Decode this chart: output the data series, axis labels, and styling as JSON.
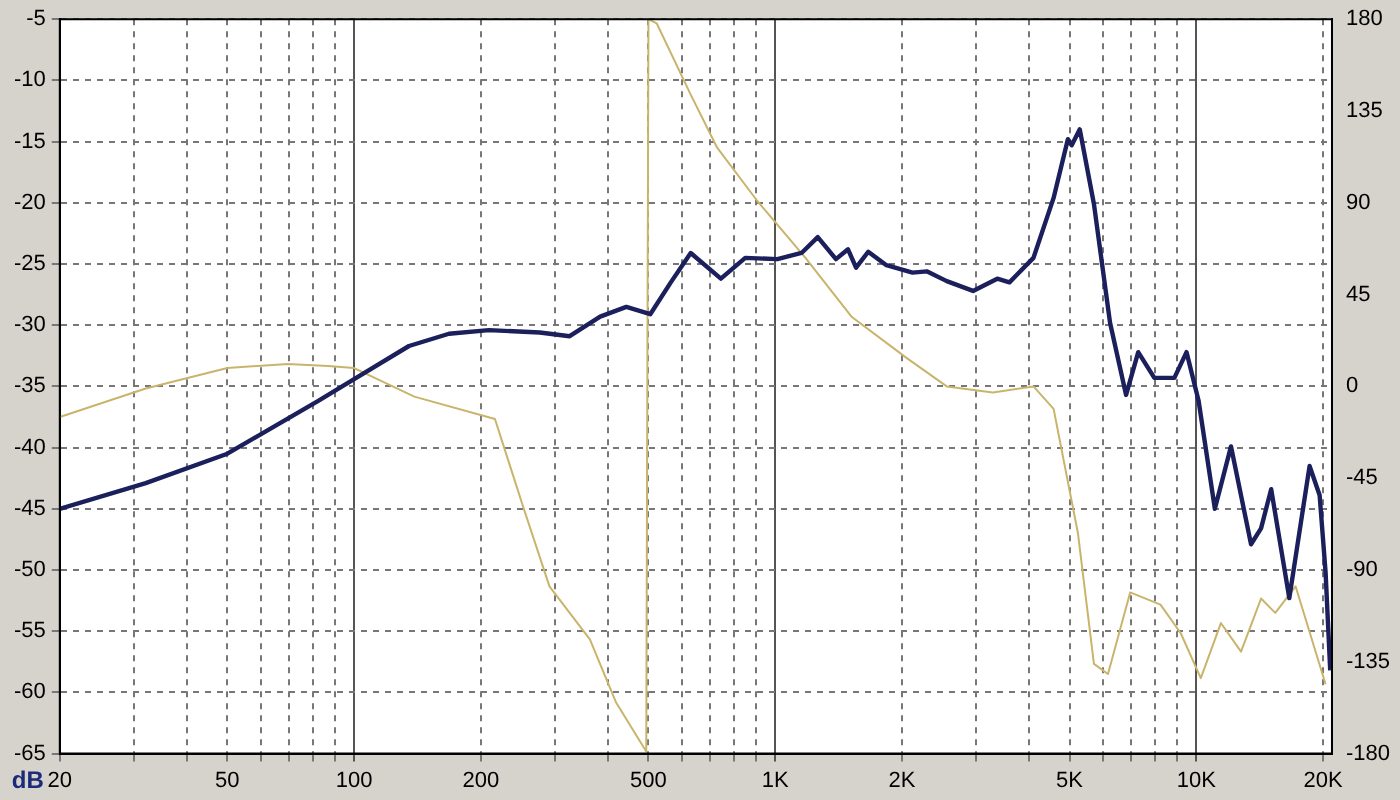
{
  "chart_data": {
    "type": "line",
    "ylabel": "dB",
    "xlim": [
      20,
      21000
    ],
    "ylim": [
      -65,
      -5
    ],
    "y2lim": [
      -180,
      180
    ],
    "log": "x",
    "grid": true,
    "legend": false,
    "marker": "none",
    "line_style": "solid",
    "xticks": [
      {
        "value": 20,
        "label": "20"
      },
      {
        "value": 30,
        "label": null
      },
      {
        "value": 40,
        "label": null
      },
      {
        "value": 50,
        "label": "50"
      },
      {
        "value": 60,
        "label": null
      },
      {
        "value": 70,
        "label": null
      },
      {
        "value": 80,
        "label": null
      },
      {
        "value": 90,
        "label": null
      },
      {
        "value": 100,
        "label": "100"
      },
      {
        "value": 200,
        "label": "200"
      },
      {
        "value": 300,
        "label": null
      },
      {
        "value": 400,
        "label": null
      },
      {
        "value": 500,
        "label": "500"
      },
      {
        "value": 600,
        "label": null
      },
      {
        "value": 700,
        "label": null
      },
      {
        "value": 800,
        "label": null
      },
      {
        "value": 900,
        "label": null
      },
      {
        "value": 1000,
        "label": "1K"
      },
      {
        "value": 2000,
        "label": "2K"
      },
      {
        "value": 3000,
        "label": null
      },
      {
        "value": 4000,
        "label": null
      },
      {
        "value": 5000,
        "label": "5K"
      },
      {
        "value": 6000,
        "label": null
      },
      {
        "value": 7000,
        "label": null
      },
      {
        "value": 8000,
        "label": null
      },
      {
        "value": 9000,
        "label": null
      },
      {
        "value": 10000,
        "label": "10K"
      },
      {
        "value": 20000,
        "label": "20K"
      }
    ],
    "yticks": [
      -65,
      -60,
      -55,
      -50,
      -45,
      -40,
      -35,
      -30,
      -25,
      -20,
      -15,
      -10,
      -5
    ],
    "y2ticks": [
      -180,
      -135,
      -90,
      -45,
      0,
      45,
      90,
      135,
      180
    ],
    "series": [
      {
        "color": "#1b1f5c",
        "x": [
          20,
          32,
          50,
          82,
          100,
          135,
          168,
          209,
          276,
          325,
          384,
          443,
          505,
          565,
          630,
          743,
          849,
          1012,
          1155,
          1262,
          1394,
          1489,
          1556,
          1663,
          1837,
          2119,
          2290,
          2555,
          2950,
          3368,
          3600,
          4105,
          4583,
          4955,
          5060,
          5288,
          5714,
          6240,
          6812,
          7280,
          7950,
          8870,
          9480,
          10130,
          11070,
          12090,
          13490,
          14250,
          15060,
          16630,
          18580,
          19630,
          20280,
          20800
        ],
        "values": [
          -45.0,
          -42.9,
          -40.5,
          -36.2,
          -34.4,
          -31.7,
          -30.7,
          -30.4,
          -30.6,
          -30.9,
          -29.3,
          -28.5,
          -29.1,
          -26.5,
          -24.1,
          -26.2,
          -24.5,
          -24.6,
          -24.1,
          -22.8,
          -24.6,
          -23.8,
          -25.3,
          -24.0,
          -25.1,
          -25.7,
          -25.6,
          -26.4,
          -27.2,
          -26.2,
          -26.5,
          -24.5,
          -19.6,
          -14.8,
          -15.3,
          -14.0,
          -20.1,
          -29.8,
          -35.7,
          -32.2,
          -34.3,
          -34.3,
          -32.2,
          -36.2,
          -45.0,
          -39.9,
          -47.9,
          -46.6,
          -43.4,
          -52.3,
          -41.5,
          -43.9,
          -50.2,
          -58.2
        ]
      },
      {
        "axis": "y2",
        "color": "#c9b46c",
        "x": [
          20,
          32,
          50,
          69.5,
          86.7,
          100,
          139,
          216,
          252,
          291,
          363,
          419,
          494,
          500,
          523,
          630,
          728,
          906,
          1180,
          1521,
          2050,
          2555,
          3288,
          4105,
          4583,
          5236,
          5714,
          6170,
          6966,
          8222,
          9186,
          10250,
          11440,
          12770,
          14250,
          15400,
          17210,
          20280
        ],
        "values": [
          -15,
          -1,
          9,
          11,
          10,
          9,
          -5,
          -16,
          -59,
          -98,
          -124,
          -155,
          -179,
          180,
          178,
          143,
          117,
          91,
          63,
          34,
          14,
          0,
          -3,
          0,
          -11,
          -72,
          -136,
          -141,
          -101,
          -107,
          -121,
          -143,
          -116,
          -130,
          -104,
          -111,
          -98,
          -146
        ]
      }
    ]
  }
}
